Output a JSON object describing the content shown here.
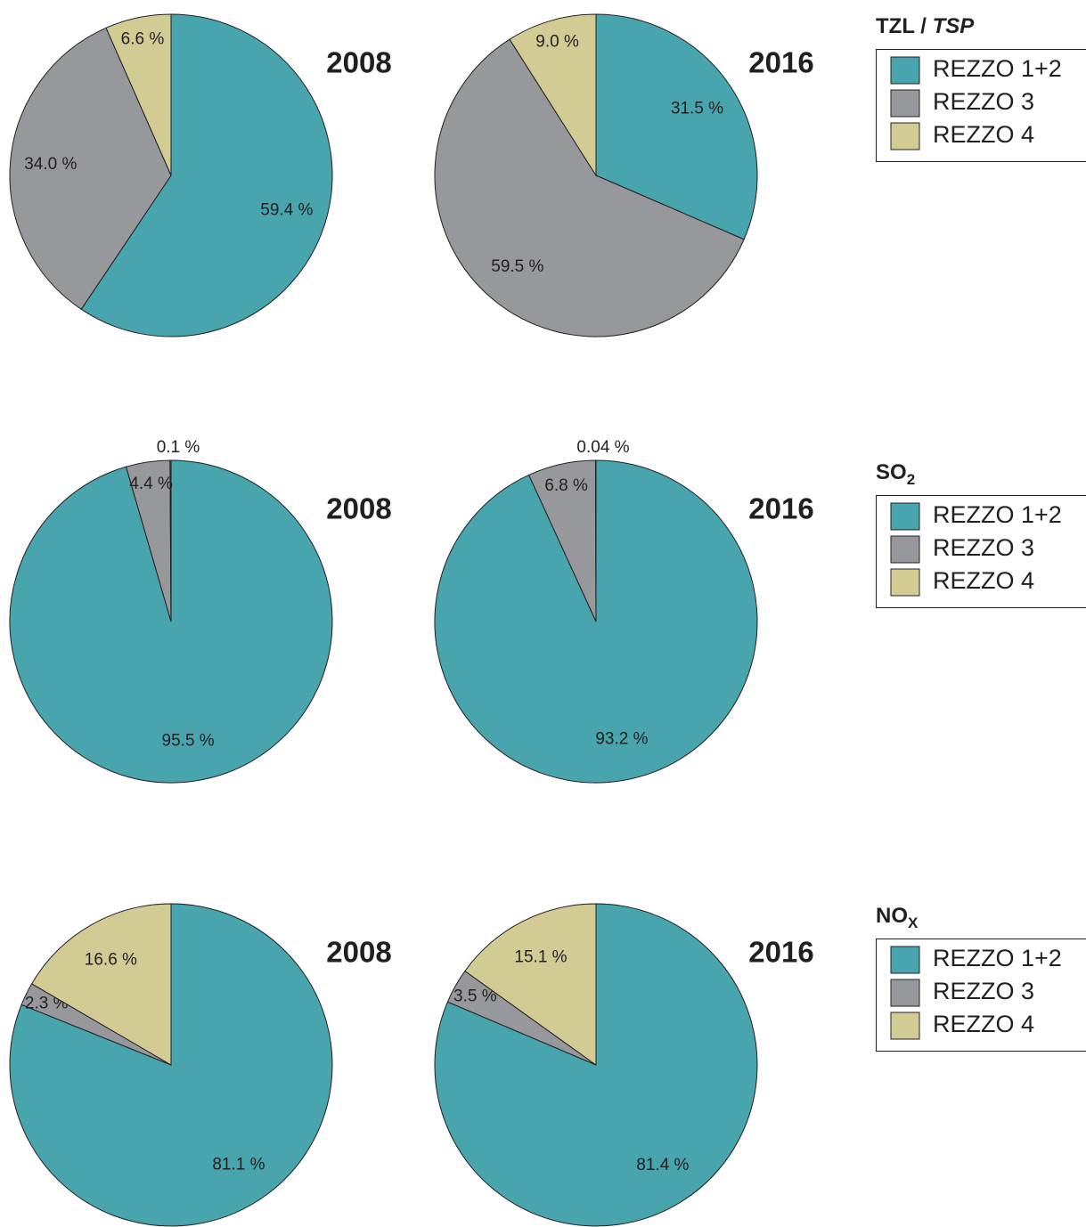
{
  "chart_data": [
    {
      "type": "pie",
      "title": "2008",
      "categories": [
        "REZZO 1+2",
        "REZZO 3",
        "REZZO 4"
      ],
      "values": [
        59.4,
        34.0,
        6.6
      ],
      "value_labels": [
        "59.4 %",
        "34.0 %",
        "6.6 %"
      ],
      "colors": [
        "#48a5ad",
        "#97989c",
        "#d2cc94"
      ]
    },
    {
      "type": "pie",
      "title": "2016",
      "categories": [
        "REZZO 1+2",
        "REZZO 3",
        "REZZO 4"
      ],
      "values": [
        31.5,
        59.5,
        9.0
      ],
      "value_labels": [
        "31.5 %",
        "59.5 %",
        "9.0 %"
      ],
      "colors": [
        "#48a5ad",
        "#97989c",
        "#d2cc94"
      ]
    },
    {
      "type": "pie",
      "title": "2008",
      "categories": [
        "REZZO 1+2",
        "REZZO 3",
        "REZZO 4"
      ],
      "values": [
        95.5,
        4.4,
        0.1
      ],
      "value_labels": [
        "95.5 %",
        "4.4 %",
        "0.1 %"
      ],
      "colors": [
        "#48a5ad",
        "#97989c",
        "#d2cc94"
      ]
    },
    {
      "type": "pie",
      "title": "2016",
      "categories": [
        "REZZO 1+2",
        "REZZO 3",
        "REZZO 4"
      ],
      "values": [
        93.2,
        6.8,
        0.04
      ],
      "value_labels": [
        "93.2 %",
        "6.8 %",
        "0.04 %"
      ],
      "colors": [
        "#48a5ad",
        "#97989c",
        "#d2cc94"
      ]
    },
    {
      "type": "pie",
      "title": "2008",
      "categories": [
        "REZZO 1+2",
        "REZZO 3",
        "REZZO 4"
      ],
      "values": [
        81.1,
        2.3,
        16.6
      ],
      "value_labels": [
        "81.1 %",
        "2.3 %",
        "16.6 %"
      ],
      "colors": [
        "#48a5ad",
        "#97989c",
        "#d2cc94"
      ]
    },
    {
      "type": "pie",
      "title": "2016",
      "categories": [
        "REZZO 1+2",
        "REZZO 3",
        "REZZO 4"
      ],
      "values": [
        81.4,
        3.5,
        15.1
      ],
      "value_labels": [
        "81.4 %",
        "3.5 %",
        "15.1 %"
      ],
      "colors": [
        "#48a5ad",
        "#97989c",
        "#d2cc94"
      ]
    }
  ],
  "legend_titles": [
    {
      "text": "TZL / ",
      "italic": "TSP"
    },
    {
      "text": "SO",
      "sub": "2"
    },
    {
      "text": "NO",
      "sub": "X"
    }
  ]
}
